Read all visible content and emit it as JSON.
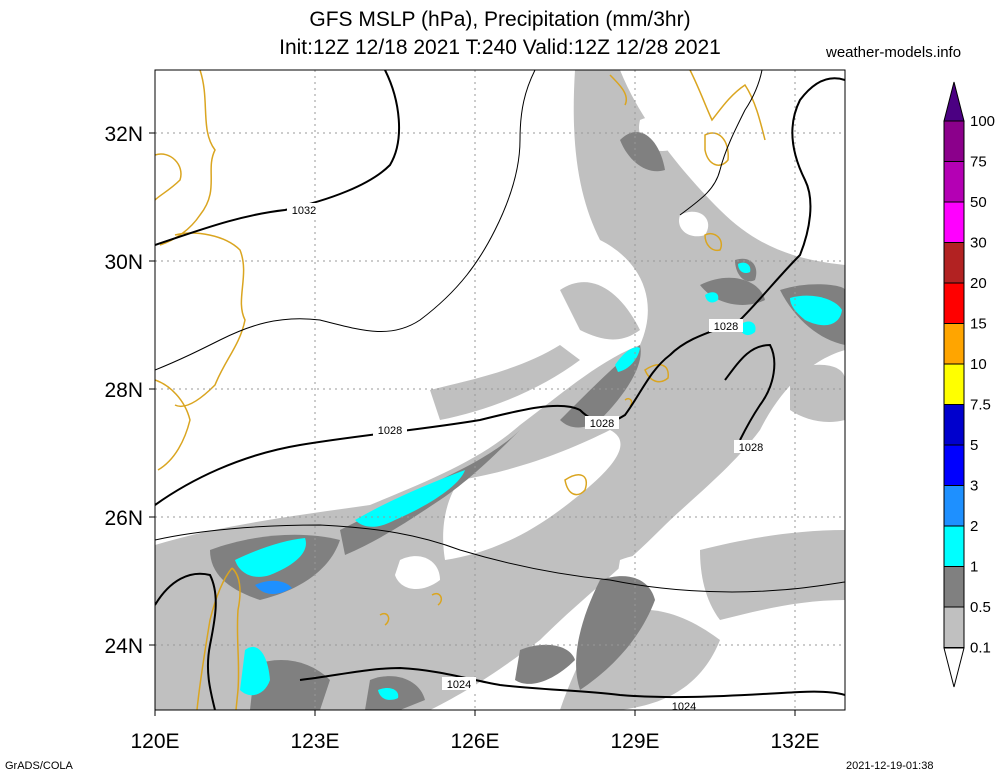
{
  "header": {
    "title_line1": "GFS MSLP (hPa), Precipitation (mm/3hr)",
    "title_line2": "Init:12Z 12/18 2021 T:240 Valid:12Z 12/28 2021",
    "site": "weather-models.info"
  },
  "footer": {
    "left": "GrADS/COLA",
    "right": "2021-12-19-01:38"
  },
  "axes": {
    "x_ticks": [
      "120E",
      "123E",
      "126E",
      "129E",
      "132E"
    ],
    "y_ticks": [
      "32N",
      "30N",
      "28N",
      "26N",
      "24N"
    ],
    "lon_range": [
      120,
      133
    ],
    "lat_range": [
      23,
      33
    ]
  },
  "isobars": [
    "1032",
    "1028",
    "1028",
    "1028",
    "1028",
    "1024",
    "1024"
  ],
  "colorbar": {
    "levels": [
      "100",
      "75",
      "50",
      "30",
      "20",
      "15",
      "10",
      "7.5",
      "5",
      "3",
      "2",
      "1",
      "0.5",
      "0.1"
    ],
    "colors": [
      "#8b008b",
      "#b400b4",
      "#ff00ff",
      "#b22222",
      "#ff0000",
      "#ffa500",
      "#ffff00",
      "#0000cd",
      "#0000ff",
      "#1e90ff",
      "#00ffff",
      "#808080",
      "#c0c0c0",
      "#ffffff"
    ],
    "top_color": "#4b0082"
  },
  "colors": {
    "coast": "#daa520",
    "light_precip": "#c0c0c0",
    "mid_precip": "#808080",
    "heavy_precip": "#00ffff",
    "heavier_precip": "#1e90ff"
  }
}
